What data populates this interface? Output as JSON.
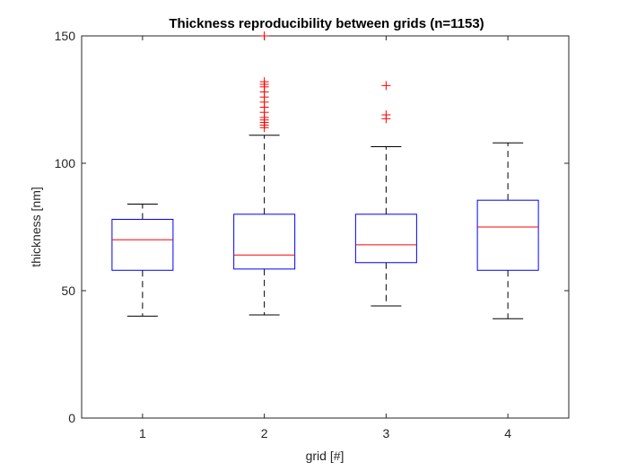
{
  "chart_data": {
    "type": "box",
    "title": "Thickness reproducibility between grids (n=1153)",
    "xlabel": "grid [#]",
    "ylabel": "thickness [nm]",
    "ylim": [
      0,
      150
    ],
    "yticks": [
      0,
      50,
      100,
      150
    ],
    "xlim": [
      0.5,
      4.5
    ],
    "categories": [
      "1",
      "2",
      "3",
      "4"
    ],
    "boxes": [
      {
        "category": "1",
        "whisker_low": 40,
        "q1": 58,
        "median": 70,
        "q3": 78,
        "whisker_high": 84,
        "outliers": []
      },
      {
        "category": "2",
        "whisker_low": 40.5,
        "q1": 58.5,
        "median": 64,
        "q3": 80,
        "whisker_high": 111,
        "outliers": [
          114,
          115,
          116,
          117,
          118,
          120,
          122,
          124,
          126,
          128,
          130,
          131,
          132,
          150
        ]
      },
      {
        "category": "3",
        "whisker_low": 44,
        "q1": 61,
        "median": 68,
        "q3": 80,
        "whisker_high": 106.5,
        "outliers": [
          117.5,
          119,
          130.5
        ]
      },
      {
        "category": "4",
        "whisker_low": 39,
        "q1": 58,
        "median": 75,
        "q3": 85.5,
        "whisker_high": 108,
        "outliers": []
      }
    ],
    "colors": {
      "box": "#0000ff",
      "median": "#ff0000",
      "whisker": "#000000",
      "outlier": "#ff0000",
      "axis": "#262626"
    },
    "grid": false,
    "box_plot": true
  }
}
